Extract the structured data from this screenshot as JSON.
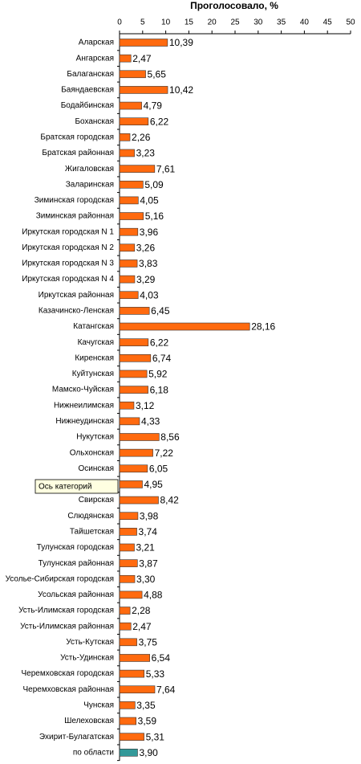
{
  "chart_data": {
    "type": "bar",
    "orientation": "horizontal",
    "title": "Проголосовало, %",
    "categories": [
      "Аларская",
      "Ангарская",
      "Балаганская",
      "Баяндаевская",
      "Бодайбинская",
      "Боханская",
      "Братская городская",
      "Братская районная",
      "Жигаловская",
      "Заларинская",
      "Зиминская городская",
      "Зиминская районная",
      "Иркутская городская N 1",
      "Иркутская городская N 2",
      "Иркутская городская N 3",
      "Иркутская городская N 4",
      "Иркутская районная",
      "Казачинско-Ленская",
      "Катангская",
      "Качугская",
      "Киренская",
      "Куйтунская",
      "Мамско-Чуйская",
      "Нижнеилимская",
      "Нижнеудинская",
      "Нукутская",
      "Ольхонская",
      "Осинская",
      null,
      "Свирская",
      "Слюдянская",
      "Тайшетская",
      "Тулунская городская",
      "Тулунская районная",
      "Усолье-Сибирская городская",
      "Усольская районная",
      "Усть-Илимская городская",
      "Усть-Илимская районная",
      "Усть-Кутская",
      "Усть-Удинская",
      "Черемховская городская",
      "Черемховская районная",
      "Чунская",
      "Шелеховская",
      "Эхирит-Булагатская",
      "по области"
    ],
    "values": [
      10.39,
      2.47,
      5.65,
      10.42,
      4.79,
      6.22,
      2.26,
      3.23,
      7.61,
      5.09,
      4.05,
      5.16,
      3.96,
      3.26,
      3.83,
      3.29,
      4.03,
      6.45,
      28.16,
      6.22,
      6.74,
      5.92,
      6.18,
      3.12,
      4.33,
      8.56,
      7.22,
      6.05,
      4.95,
      8.42,
      3.98,
      3.74,
      3.21,
      3.87,
      3.3,
      4.88,
      2.28,
      2.47,
      3.75,
      6.54,
      5.33,
      7.64,
      3.35,
      3.59,
      5.31,
      3.9
    ],
    "value_labels": [
      "10,39",
      "2,47",
      "5,65",
      "10,42",
      "4,79",
      "6,22",
      "2,26",
      "3,23",
      "7,61",
      "5,09",
      "4,05",
      "5,16",
      "3,96",
      "3,26",
      "3,83",
      "3,29",
      "4,03",
      "6,45",
      "28,16",
      "6,22",
      "6,74",
      "5,92",
      "6,18",
      "3,12",
      "4,33",
      "8,56",
      "7,22",
      "6,05",
      "4,95",
      "8,42",
      "3,98",
      "3,74",
      "3,21",
      "3,87",
      "3,30",
      "4,88",
      "2,28",
      "2,47",
      "3,75",
      "6,54",
      "5,33",
      "7,64",
      "3,35",
      "3,59",
      "5,31",
      "3,90"
    ],
    "color": "#ff6a0f",
    "highlight_color": "#339999",
    "xlim": [
      0,
      50
    ],
    "xticks": [
      0,
      5,
      10,
      15,
      20,
      25,
      30,
      35,
      40,
      45,
      50
    ],
    "tooltip": "Ось категорий"
  }
}
